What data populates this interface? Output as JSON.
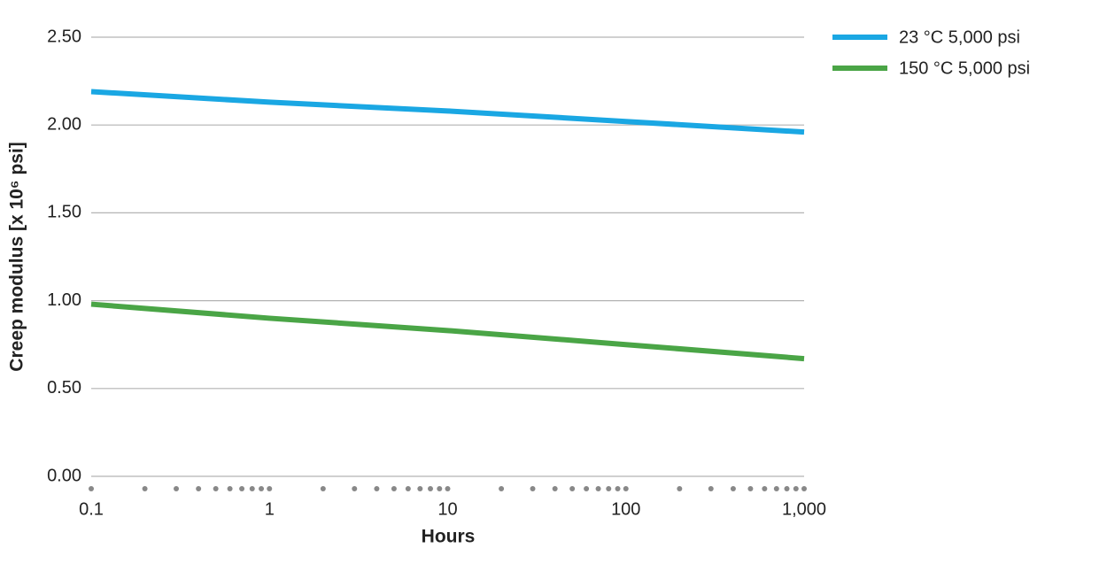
{
  "chart_data": {
    "type": "line",
    "x_label": "Hours",
    "y_label": "Creep modulus [x 10⁶ psi]",
    "x_scale": "log",
    "x": [
      0.1,
      1,
      10,
      100,
      1000
    ],
    "series": [
      {
        "name": "23 °C 5,000 psi",
        "color": "#1aa7e3",
        "values": [
          2.19,
          2.13,
          2.08,
          2.02,
          1.96
        ]
      },
      {
        "name": "150 °C 5,000 psi",
        "color": "#4aa546",
        "values": [
          0.98,
          0.9,
          0.83,
          0.75,
          0.67
        ]
      }
    ],
    "xlim": [
      0.1,
      1000
    ],
    "xticks": [
      0.1,
      1,
      10,
      100,
      {
        "value": 1000,
        "label": "1,000"
      }
    ],
    "xminorticks": [
      0.2,
      0.3,
      0.4,
      0.5,
      0.6,
      0.7,
      0.8,
      0.9,
      2,
      3,
      4,
      5,
      6,
      7,
      8,
      9,
      20,
      30,
      40,
      50,
      60,
      70,
      80,
      90,
      200,
      300,
      400,
      500,
      600,
      700,
      800,
      900
    ],
    "ylim": [
      0,
      2.5
    ],
    "yticks": [
      {
        "value": 0,
        "label": "0.00"
      },
      {
        "value": 0.5,
        "label": "0.50"
      },
      {
        "value": 1,
        "label": "1.00"
      },
      {
        "value": 1.5,
        "label": "1.50"
      },
      {
        "value": 2,
        "label": "2.00"
      },
      {
        "value": 2.5,
        "label": "2.50"
      }
    ],
    "grid": true,
    "legend": "top-right"
  }
}
